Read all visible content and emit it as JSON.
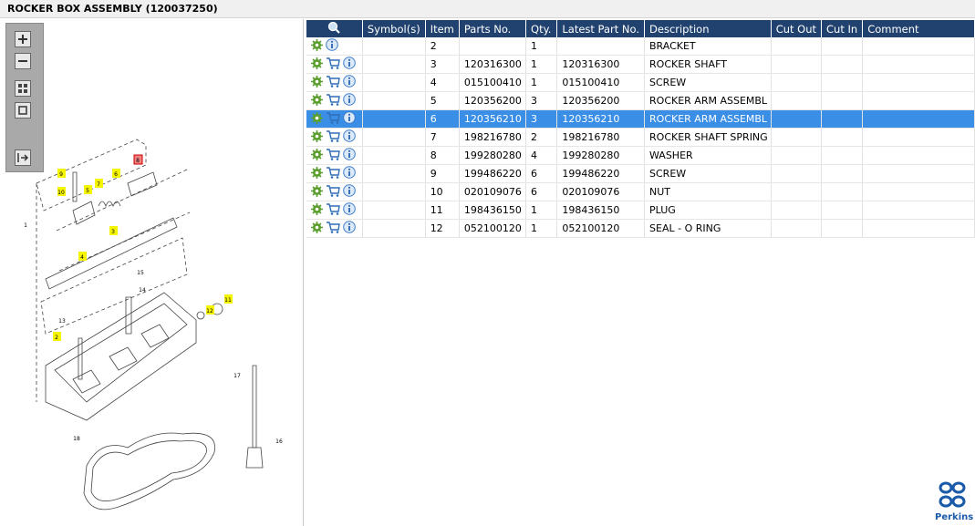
{
  "header": {
    "title": "ROCKER BOX ASSEMBLY (120037250)"
  },
  "diagram": {
    "callouts": [
      "1",
      "9",
      "10",
      "5",
      "7",
      "6",
      "8",
      "3",
      "4",
      "15",
      "14",
      "11",
      "12",
      "13",
      "2",
      "17",
      "18",
      "16"
    ]
  },
  "table": {
    "columns": [
      "Symbol(s)",
      "Item",
      "Parts No.",
      "Qty.",
      "Latest Part No.",
      "Description",
      "Cut Out",
      "Cut In",
      "Comment"
    ],
    "selected_row": 4,
    "rows": [
      {
        "cart": false,
        "cells": [
          null,
          "2",
          null,
          "1",
          null,
          "BRACKET",
          null,
          null,
          null
        ]
      },
      {
        "cart": true,
        "cells": [
          null,
          "3",
          "120316300",
          "1",
          "120316300",
          "ROCKER SHAFT",
          null,
          null,
          null
        ]
      },
      {
        "cart": true,
        "cells": [
          null,
          "4",
          "015100410",
          "1",
          "015100410",
          "SCREW",
          null,
          null,
          null
        ]
      },
      {
        "cart": true,
        "cells": [
          null,
          "5",
          "120356200",
          "3",
          "120356200",
          "ROCKER ARM ASSEMBL",
          null,
          null,
          null
        ]
      },
      {
        "cart": true,
        "cells": [
          null,
          "6",
          "120356210",
          "3",
          "120356210",
          "ROCKER ARM ASSEMBL",
          null,
          null,
          null
        ]
      },
      {
        "cart": true,
        "cells": [
          null,
          "7",
          "198216780",
          "2",
          "198216780",
          "ROCKER SHAFT SPRING",
          null,
          null,
          null
        ]
      },
      {
        "cart": true,
        "cells": [
          null,
          "8",
          "199280280",
          "4",
          "199280280",
          "WASHER",
          null,
          null,
          null
        ]
      },
      {
        "cart": true,
        "cells": [
          null,
          "9",
          "199486220",
          "6",
          "199486220",
          "SCREW",
          null,
          null,
          null
        ]
      },
      {
        "cart": true,
        "cells": [
          null,
          "10",
          "020109076",
          "6",
          "020109076",
          "NUT",
          null,
          null,
          null
        ]
      },
      {
        "cart": true,
        "cells": [
          null,
          "11",
          "198436150",
          "1",
          "198436150",
          "PLUG",
          null,
          null,
          null
        ]
      },
      {
        "cart": true,
        "cells": [
          null,
          "12",
          "052100120",
          "1",
          "052100120",
          "SEAL - O RING",
          null,
          null,
          null
        ]
      }
    ]
  },
  "logo": {
    "text": "Perkins"
  }
}
